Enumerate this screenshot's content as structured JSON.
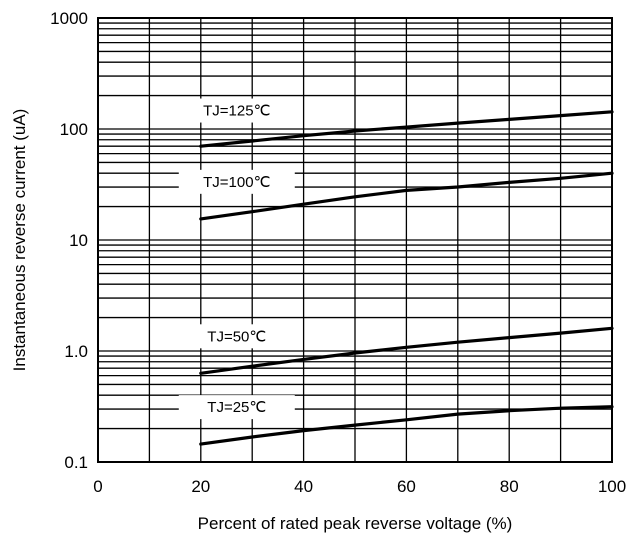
{
  "chart_data": {
    "type": "line",
    "xlabel": "Percent of rated peak reverse voltage (%)",
    "ylabel": "Instantaneous reverse current (uA)",
    "xlim": [
      0,
      100
    ],
    "ylim": [
      0.1,
      1000
    ],
    "y_scale": "log",
    "grid": true,
    "x_ticks": [
      0,
      20,
      40,
      60,
      80,
      100
    ],
    "x_tick_labels": [
      "0",
      "20",
      "40",
      "60",
      "80",
      "100"
    ],
    "y_ticks": [
      0.1,
      1,
      10,
      100,
      1000
    ],
    "y_tick_labels": [
      "0.1",
      "1.0",
      "10",
      "100",
      "1000"
    ],
    "series": [
      {
        "name": "TJ=125℃",
        "x": [
          20,
          30,
          40,
          50,
          60,
          70,
          80,
          90,
          100
        ],
        "y": [
          70,
          78,
          87,
          96,
          104,
          113,
          122,
          132,
          143
        ]
      },
      {
        "name": "TJ=100℃",
        "x": [
          20,
          30,
          40,
          50,
          60,
          70,
          80,
          90,
          100
        ],
        "y": [
          15.5,
          18,
          21,
          24.5,
          28,
          30,
          33,
          36,
          40
        ]
      },
      {
        "name": "TJ=50℃",
        "x": [
          20,
          30,
          40,
          50,
          60,
          70,
          80,
          90,
          100
        ],
        "y": [
          0.63,
          0.73,
          0.84,
          0.96,
          1.08,
          1.2,
          1.32,
          1.45,
          1.6
        ]
      },
      {
        "name": "TJ=25℃",
        "x": [
          20,
          30,
          40,
          50,
          60,
          70,
          80,
          90,
          100
        ],
        "y": [
          0.145,
          0.168,
          0.192,
          0.215,
          0.24,
          0.27,
          0.29,
          0.305,
          0.315
        ]
      }
    ]
  }
}
